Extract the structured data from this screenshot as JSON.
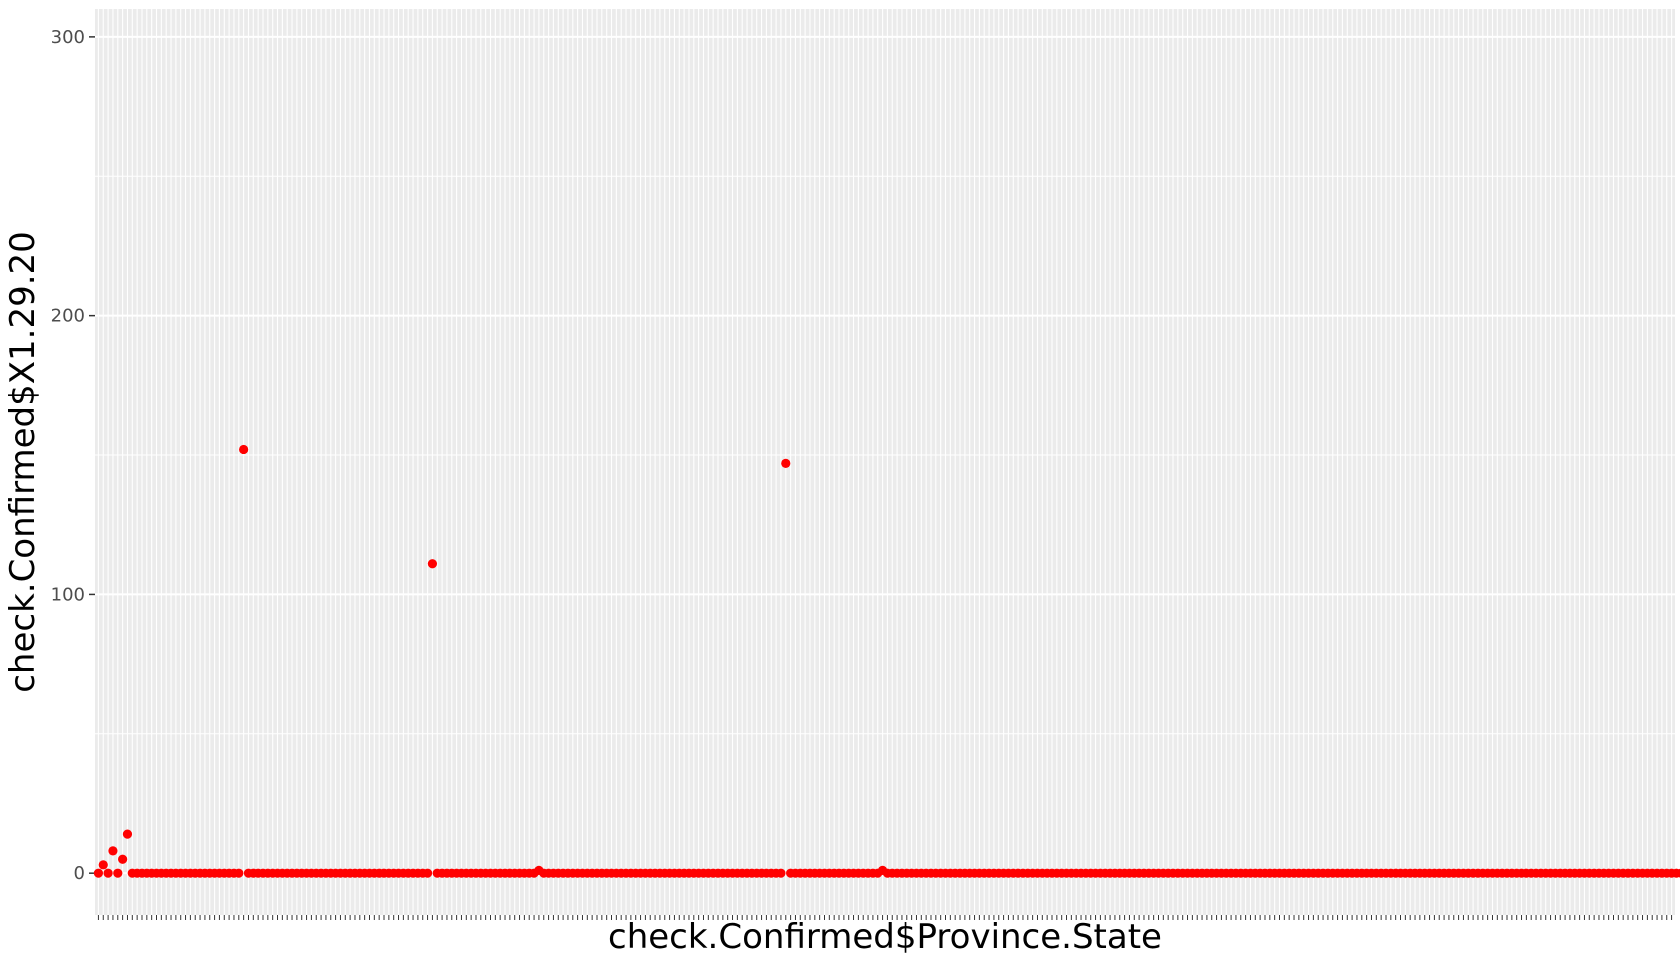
{
  "chart_data": {
    "type": "scatter",
    "xlabel": "check.Confirmed$Province.State",
    "ylabel": "check.Confirmed$X1.29.20",
    "ylim": [
      -15,
      310
    ],
    "y_ticks": [
      0,
      100,
      200,
      300
    ],
    "y_tick_labels": [
      "0",
      "100",
      "200",
      "300"
    ],
    "x_tick_labels_shown": false,
    "grid": true,
    "legend": "none",
    "n_categories": 326,
    "colors": {
      "panel": "#ebebeb",
      "grid": "#ffffff",
      "point": "#ff0000",
      "text": "#4d4d4d"
    },
    "series": [
      {
        "values": [
          0,
          3,
          0,
          8,
          0,
          5,
          14,
          0,
          0,
          0,
          0,
          0,
          0,
          0,
          0,
          0,
          0,
          0,
          0,
          0,
          0,
          0,
          0,
          0,
          0,
          0,
          0,
          0,
          0,
          0,
          152,
          0,
          0,
          0,
          0,
          0,
          0,
          0,
          0,
          0,
          0,
          0,
          0,
          0,
          0,
          0,
          0,
          0,
          0,
          0,
          0,
          0,
          0,
          0,
          0,
          0,
          0,
          0,
          0,
          0,
          0,
          0,
          0,
          0,
          0,
          0,
          0,
          0,
          0,
          111,
          0,
          0,
          0,
          0,
          0,
          0,
          0,
          0,
          0,
          0,
          0,
          0,
          0,
          0,
          0,
          0,
          0,
          0,
          0,
          0,
          0,
          1,
          0,
          0,
          0,
          0,
          0,
          0,
          0,
          0,
          0,
          0,
          0,
          0,
          0,
          0,
          0,
          0,
          0,
          0,
          0,
          0,
          0,
          0,
          0,
          0,
          0,
          0,
          0,
          0,
          0,
          0,
          0,
          0,
          0,
          0,
          0,
          0,
          0,
          0,
          0,
          0,
          0,
          0,
          0,
          0,
          0,
          0,
          0,
          0,
          0,
          0,
          147,
          0,
          0,
          0,
          0,
          0,
          0,
          0,
          0,
          0,
          0,
          0,
          0,
          0,
          0,
          0,
          0,
          0,
          0,
          0,
          1,
          0,
          0,
          0,
          0,
          0,
          0,
          0,
          0,
          0,
          0,
          0,
          0,
          0,
          0,
          0,
          0,
          0,
          0,
          0,
          0,
          0,
          0,
          0,
          0,
          0,
          0,
          0,
          0,
          0,
          0,
          0,
          0,
          0,
          0,
          0,
          0,
          0,
          0,
          0,
          0,
          0,
          0,
          0,
          0,
          0,
          0,
          0,
          0,
          0,
          0,
          0,
          0,
          0,
          0,
          0,
          0,
          0,
          0,
          0,
          0,
          0,
          0,
          0,
          0,
          0,
          0,
          0,
          0,
          0,
          0,
          0,
          0,
          0,
          0,
          0,
          0,
          0,
          0,
          0,
          0,
          0,
          0,
          0,
          0,
          0,
          0,
          0,
          0,
          0,
          0,
          0,
          0,
          0,
          0,
          0,
          0,
          0,
          0,
          0,
          0,
          0,
          0,
          0,
          0,
          0,
          0,
          0,
          0,
          0,
          0,
          0,
          0,
          0,
          0,
          0,
          0,
          0,
          0,
          0,
          0,
          0,
          0,
          0,
          0,
          0,
          0,
          0,
          0,
          0,
          0,
          0,
          0,
          0,
          0,
          0,
          0,
          0,
          0,
          0,
          0,
          0,
          0,
          0,
          0,
          0,
          0,
          0,
          0,
          0,
          0,
          0,
          0,
          0,
          0,
          0,
          0,
          0,
          0,
          0,
          0,
          0,
          0,
          0,
          0,
          0,
          0,
          0,
          0,
          0,
          0,
          0,
          0,
          0,
          0,
          0,
          0,
          0
        ]
      }
    ]
  }
}
